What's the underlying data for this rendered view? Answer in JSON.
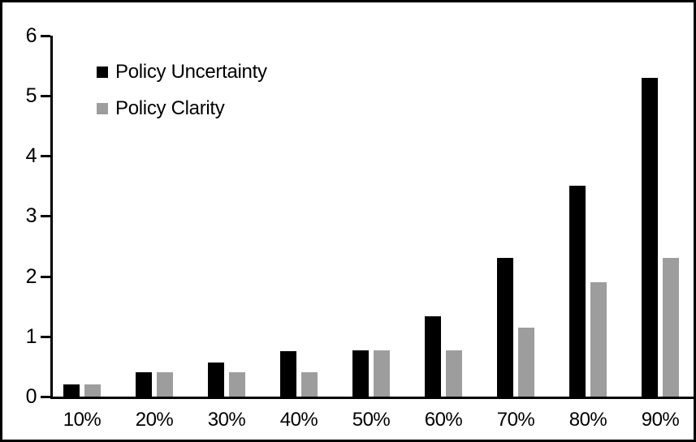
{
  "chart_data": {
    "type": "bar",
    "title": "",
    "xlabel": "",
    "ylabel": "",
    "categories": [
      "10%",
      "20%",
      "30%",
      "40%",
      "50%",
      "60%",
      "70%",
      "80%",
      "90%"
    ],
    "series": [
      {
        "name": "Policy Uncertainty",
        "color": "#000000",
        "values": [
          0.2,
          0.4,
          0.57,
          0.76,
          0.77,
          1.33,
          2.3,
          3.5,
          5.3
        ]
      },
      {
        "name": "Policy Clarity",
        "color": "#9d9d9d",
        "values": [
          0.2,
          0.4,
          0.4,
          0.4,
          0.77,
          0.77,
          1.15,
          1.9,
          2.3
        ]
      }
    ],
    "ylim": [
      0,
      6
    ],
    "yticks": [
      "0",
      "1",
      "2",
      "3",
      "4",
      "5",
      "6"
    ],
    "grid": false,
    "legend_position": "top-left",
    "axis_color": "#000000",
    "frame_color": "#000000",
    "background_color": "#ffffff"
  }
}
